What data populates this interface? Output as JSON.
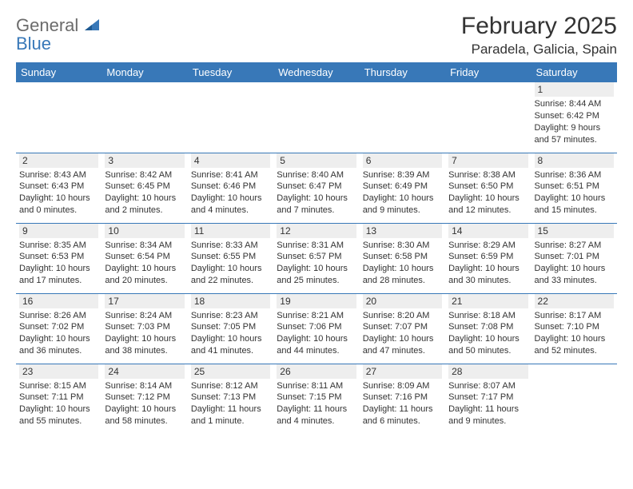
{
  "logo": {
    "line1": "General",
    "line2": "Blue"
  },
  "colors": {
    "brand": "#3878b8",
    "text": "#333333",
    "grey": "#6b6b6b",
    "daynum_bg": "#eeeeee",
    "bg": "#ffffff"
  },
  "header": {
    "month": "February 2025",
    "location": "Paradela, Galicia, Spain"
  },
  "day_headers": [
    "Sunday",
    "Monday",
    "Tuesday",
    "Wednesday",
    "Thursday",
    "Friday",
    "Saturday"
  ],
  "weeks": [
    [
      null,
      null,
      null,
      null,
      null,
      null,
      {
        "n": "1",
        "sunrise": "Sunrise: 8:44 AM",
        "sunset": "Sunset: 6:42 PM",
        "daylight": "Daylight: 9 hours and 57 minutes."
      }
    ],
    [
      {
        "n": "2",
        "sunrise": "Sunrise: 8:43 AM",
        "sunset": "Sunset: 6:43 PM",
        "daylight": "Daylight: 10 hours and 0 minutes."
      },
      {
        "n": "3",
        "sunrise": "Sunrise: 8:42 AM",
        "sunset": "Sunset: 6:45 PM",
        "daylight": "Daylight: 10 hours and 2 minutes."
      },
      {
        "n": "4",
        "sunrise": "Sunrise: 8:41 AM",
        "sunset": "Sunset: 6:46 PM",
        "daylight": "Daylight: 10 hours and 4 minutes."
      },
      {
        "n": "5",
        "sunrise": "Sunrise: 8:40 AM",
        "sunset": "Sunset: 6:47 PM",
        "daylight": "Daylight: 10 hours and 7 minutes."
      },
      {
        "n": "6",
        "sunrise": "Sunrise: 8:39 AM",
        "sunset": "Sunset: 6:49 PM",
        "daylight": "Daylight: 10 hours and 9 minutes."
      },
      {
        "n": "7",
        "sunrise": "Sunrise: 8:38 AM",
        "sunset": "Sunset: 6:50 PM",
        "daylight": "Daylight: 10 hours and 12 minutes."
      },
      {
        "n": "8",
        "sunrise": "Sunrise: 8:36 AM",
        "sunset": "Sunset: 6:51 PM",
        "daylight": "Daylight: 10 hours and 15 minutes."
      }
    ],
    [
      {
        "n": "9",
        "sunrise": "Sunrise: 8:35 AM",
        "sunset": "Sunset: 6:53 PM",
        "daylight": "Daylight: 10 hours and 17 minutes."
      },
      {
        "n": "10",
        "sunrise": "Sunrise: 8:34 AM",
        "sunset": "Sunset: 6:54 PM",
        "daylight": "Daylight: 10 hours and 20 minutes."
      },
      {
        "n": "11",
        "sunrise": "Sunrise: 8:33 AM",
        "sunset": "Sunset: 6:55 PM",
        "daylight": "Daylight: 10 hours and 22 minutes."
      },
      {
        "n": "12",
        "sunrise": "Sunrise: 8:31 AM",
        "sunset": "Sunset: 6:57 PM",
        "daylight": "Daylight: 10 hours and 25 minutes."
      },
      {
        "n": "13",
        "sunrise": "Sunrise: 8:30 AM",
        "sunset": "Sunset: 6:58 PM",
        "daylight": "Daylight: 10 hours and 28 minutes."
      },
      {
        "n": "14",
        "sunrise": "Sunrise: 8:29 AM",
        "sunset": "Sunset: 6:59 PM",
        "daylight": "Daylight: 10 hours and 30 minutes."
      },
      {
        "n": "15",
        "sunrise": "Sunrise: 8:27 AM",
        "sunset": "Sunset: 7:01 PM",
        "daylight": "Daylight: 10 hours and 33 minutes."
      }
    ],
    [
      {
        "n": "16",
        "sunrise": "Sunrise: 8:26 AM",
        "sunset": "Sunset: 7:02 PM",
        "daylight": "Daylight: 10 hours and 36 minutes."
      },
      {
        "n": "17",
        "sunrise": "Sunrise: 8:24 AM",
        "sunset": "Sunset: 7:03 PM",
        "daylight": "Daylight: 10 hours and 38 minutes."
      },
      {
        "n": "18",
        "sunrise": "Sunrise: 8:23 AM",
        "sunset": "Sunset: 7:05 PM",
        "daylight": "Daylight: 10 hours and 41 minutes."
      },
      {
        "n": "19",
        "sunrise": "Sunrise: 8:21 AM",
        "sunset": "Sunset: 7:06 PM",
        "daylight": "Daylight: 10 hours and 44 minutes."
      },
      {
        "n": "20",
        "sunrise": "Sunrise: 8:20 AM",
        "sunset": "Sunset: 7:07 PM",
        "daylight": "Daylight: 10 hours and 47 minutes."
      },
      {
        "n": "21",
        "sunrise": "Sunrise: 8:18 AM",
        "sunset": "Sunset: 7:08 PM",
        "daylight": "Daylight: 10 hours and 50 minutes."
      },
      {
        "n": "22",
        "sunrise": "Sunrise: 8:17 AM",
        "sunset": "Sunset: 7:10 PM",
        "daylight": "Daylight: 10 hours and 52 minutes."
      }
    ],
    [
      {
        "n": "23",
        "sunrise": "Sunrise: 8:15 AM",
        "sunset": "Sunset: 7:11 PM",
        "daylight": "Daylight: 10 hours and 55 minutes."
      },
      {
        "n": "24",
        "sunrise": "Sunrise: 8:14 AM",
        "sunset": "Sunset: 7:12 PM",
        "daylight": "Daylight: 10 hours and 58 minutes."
      },
      {
        "n": "25",
        "sunrise": "Sunrise: 8:12 AM",
        "sunset": "Sunset: 7:13 PM",
        "daylight": "Daylight: 11 hours and 1 minute."
      },
      {
        "n": "26",
        "sunrise": "Sunrise: 8:11 AM",
        "sunset": "Sunset: 7:15 PM",
        "daylight": "Daylight: 11 hours and 4 minutes."
      },
      {
        "n": "27",
        "sunrise": "Sunrise: 8:09 AM",
        "sunset": "Sunset: 7:16 PM",
        "daylight": "Daylight: 11 hours and 6 minutes."
      },
      {
        "n": "28",
        "sunrise": "Sunrise: 8:07 AM",
        "sunset": "Sunset: 7:17 PM",
        "daylight": "Daylight: 11 hours and 9 minutes."
      },
      null
    ]
  ]
}
